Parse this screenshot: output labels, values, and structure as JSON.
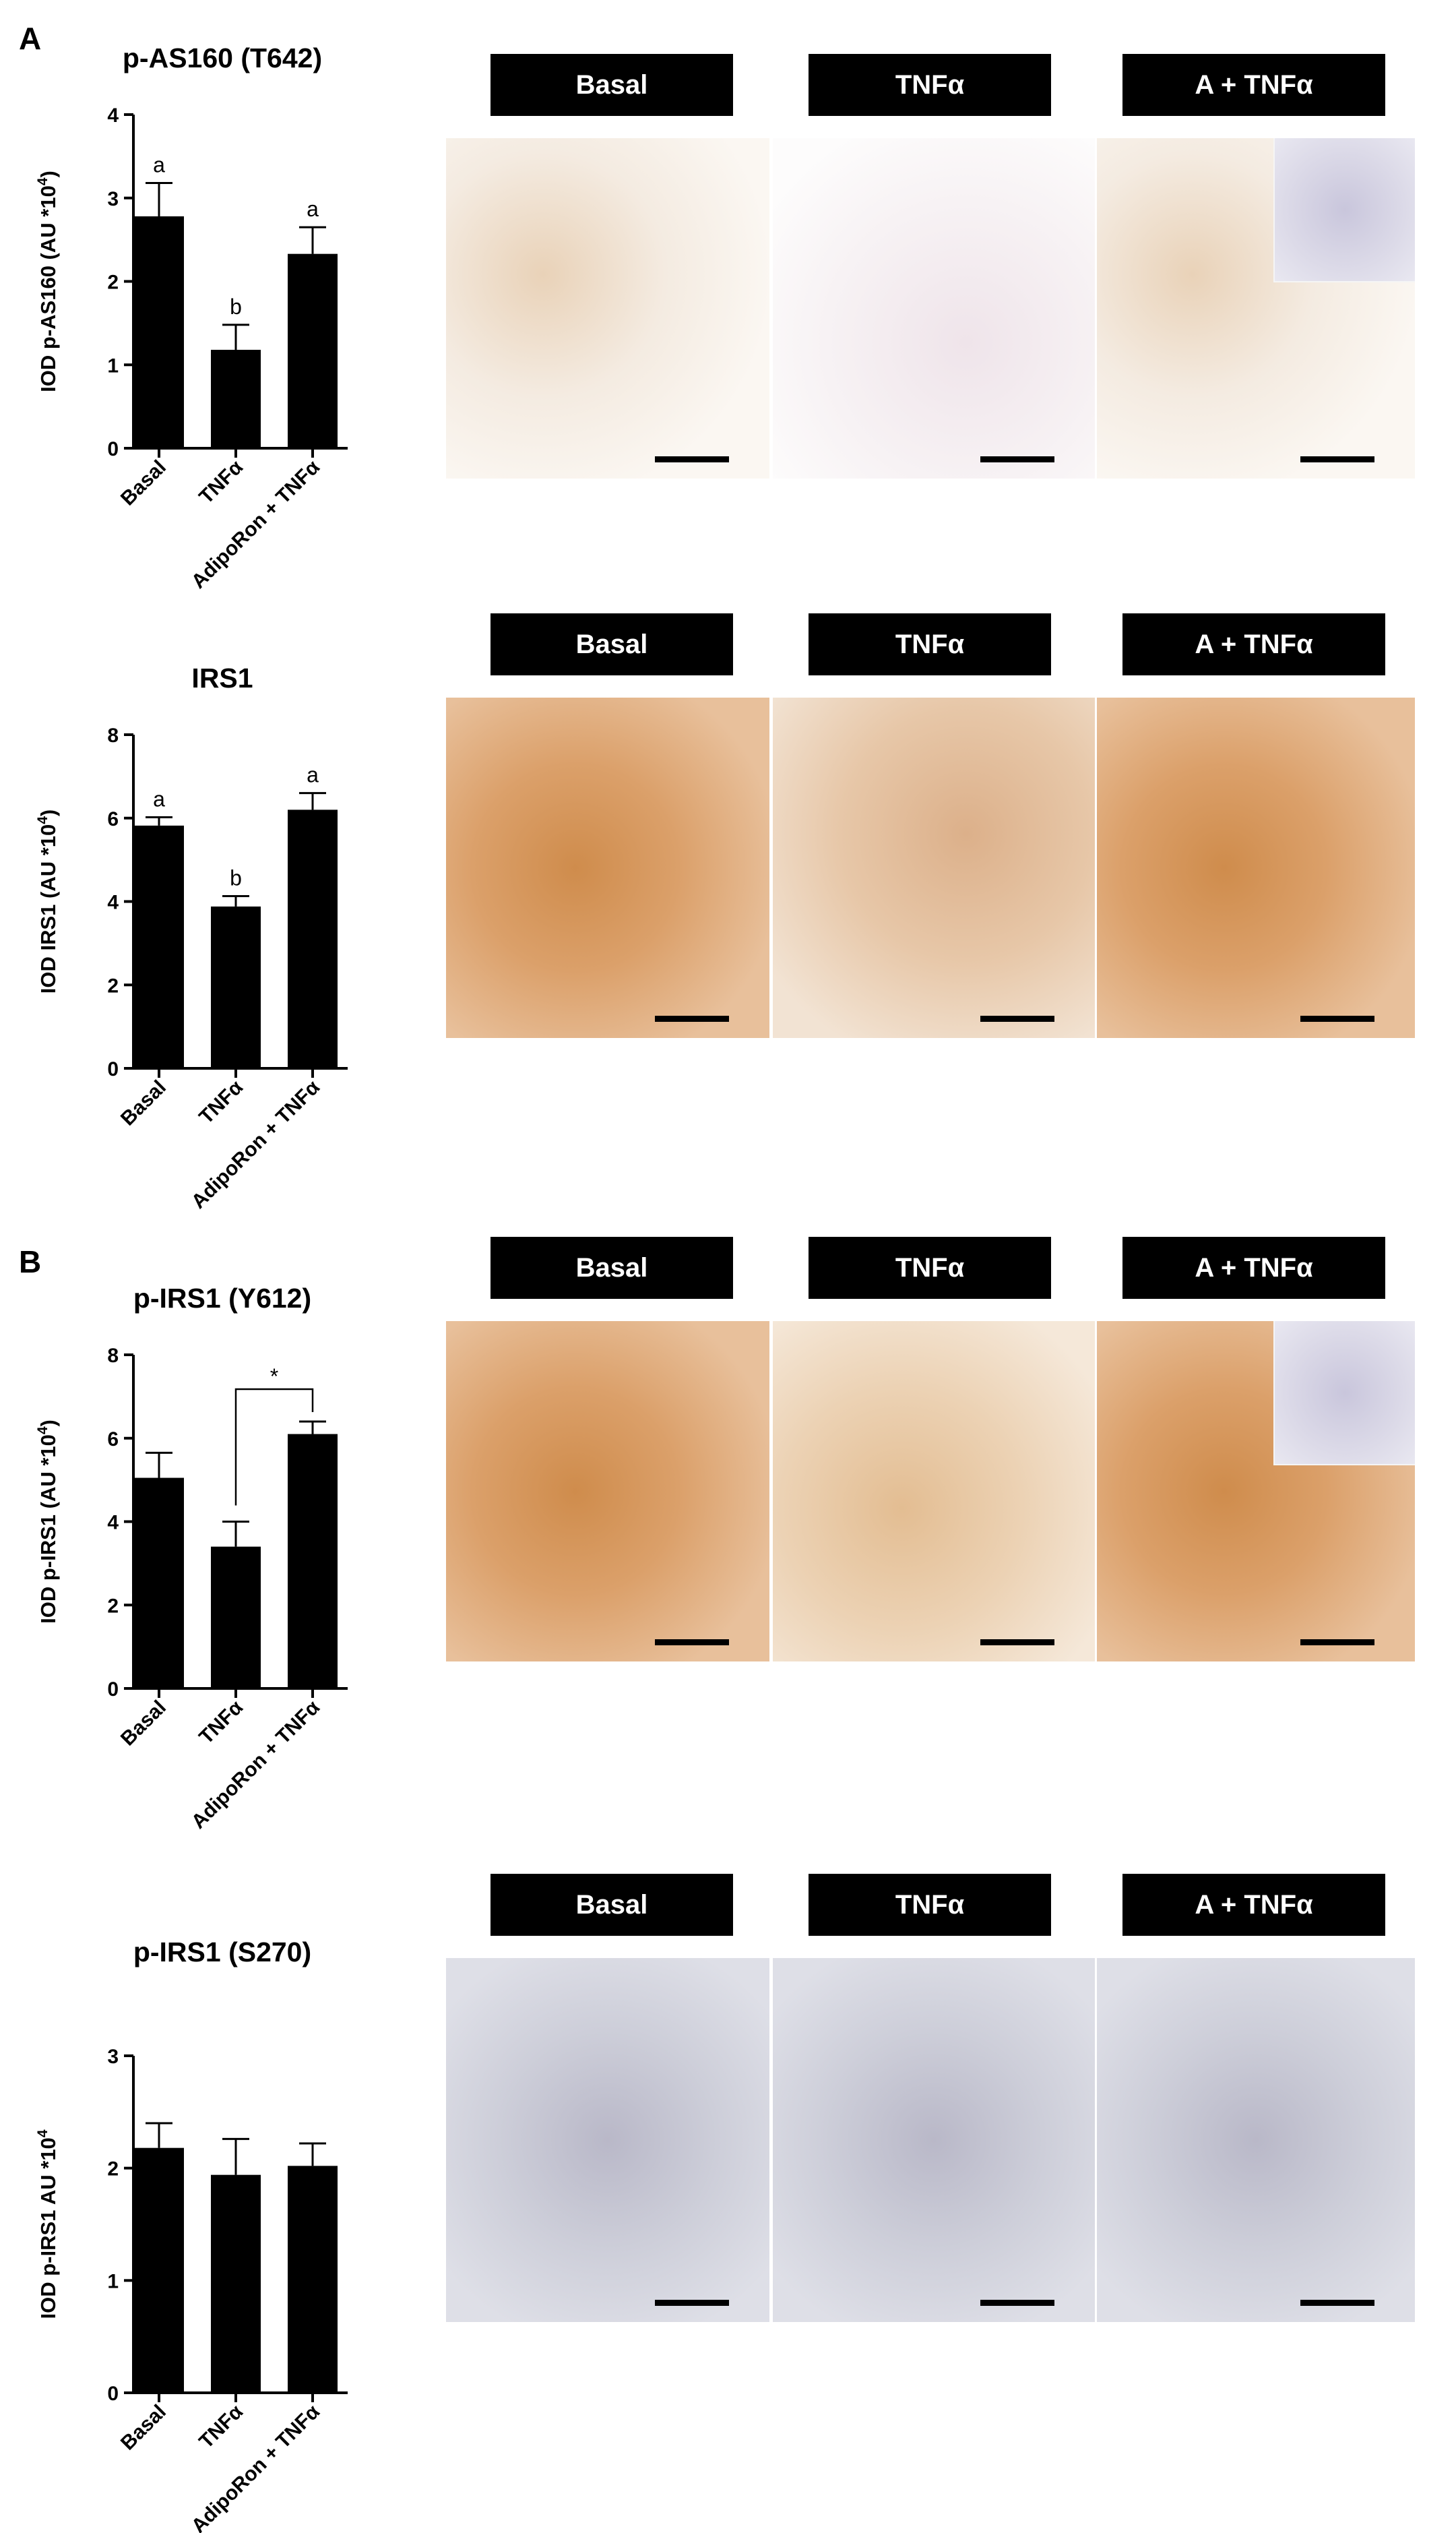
{
  "panels": [
    {
      "letter": "A",
      "x": 28,
      "y": 30
    },
    {
      "letter": "B",
      "x": 28,
      "y": 1845
    }
  ],
  "charts": [
    {
      "title": "p-AS160 (T642)",
      "ylabel_main": "IOD p-AS160 (AU *10",
      "ylabel_exp": "4",
      "ylabel_tail": ")"
    },
    {
      "title": "IRS1",
      "ylabel_main": "IOD IRS1 (AU *10",
      "ylabel_exp": "4",
      "ylabel_tail": ")"
    },
    {
      "title": "p-IRS1 (Y612)",
      "ylabel_main": "IOD p-IRS1 (AU *10",
      "ylabel_exp": "4",
      "ylabel_tail": ")"
    },
    {
      "title": "p-IRS1 (S270)",
      "ylabel_main": "IOD p-IRS1 AU *10",
      "ylabel_exp": "4",
      "ylabel_tail": ""
    }
  ],
  "chart_data": [
    {
      "type": "bar",
      "title": "p-AS160 (T642)",
      "ylabel": "IOD p-AS160 (AU *10^4)",
      "categories": [
        "Basal",
        "TNFα",
        "AdipoRon + TNFα"
      ],
      "values": [
        2.78,
        1.18,
        2.33
      ],
      "errors": [
        0.4,
        0.3,
        0.32
      ],
      "labels": [
        "a",
        "b",
        "a"
      ],
      "ylim": [
        0,
        4
      ],
      "yticks": [
        0,
        1,
        2,
        3,
        4
      ]
    },
    {
      "type": "bar",
      "title": "IRS1",
      "ylabel": "IOD IRS1 (AU *10^4)",
      "categories": [
        "Basal",
        "TNFα",
        "AdipoRon + TNFα"
      ],
      "values": [
        5.82,
        3.88,
        6.2
      ],
      "errors": [
        0.2,
        0.25,
        0.4
      ],
      "labels": [
        "a",
        "b",
        "a"
      ],
      "ylim": [
        0,
        8
      ],
      "yticks": [
        0,
        2,
        4,
        6,
        8
      ]
    },
    {
      "type": "bar",
      "title": "p-IRS1 (Y612)",
      "ylabel": "IOD p-IRS1 (AU *10^4)",
      "categories": [
        "Basal",
        "TNFα",
        "AdipoRon + TNFα"
      ],
      "values": [
        5.05,
        3.4,
        6.1
      ],
      "errors": [
        0.6,
        0.6,
        0.3
      ],
      "labels": [
        "",
        "",
        ""
      ],
      "significance": {
        "from": 1,
        "to": 2,
        "label": "*"
      },
      "ylim": [
        0,
        8
      ],
      "yticks": [
        0,
        2,
        4,
        6,
        8
      ]
    },
    {
      "type": "bar",
      "title": "p-IRS1 (S270)",
      "ylabel": "IOD p-IRS1 AU *10^4",
      "categories": [
        "Basal",
        "TNFα",
        "AdipoRon + TNFα"
      ],
      "values": [
        2.18,
        1.94,
        2.02
      ],
      "errors": [
        0.22,
        0.32,
        0.2
      ],
      "labels": [
        "",
        "",
        ""
      ],
      "ylim": [
        0,
        3
      ],
      "yticks": [
        0,
        1,
        2,
        3
      ]
    }
  ],
  "micrograph_rows": [
    {
      "labels": [
        "Basal",
        "TNFα",
        "A + TNFα"
      ],
      "styles": [
        "pale",
        "white",
        "pale"
      ],
      "inset": [
        false,
        false,
        true
      ]
    },
    {
      "labels": [
        "Basal",
        "TNFα",
        "A + TNFα"
      ],
      "styles": [
        "brown",
        "mid",
        "brown"
      ],
      "inset": [
        false,
        false,
        false
      ]
    },
    {
      "labels": [
        "Basal",
        "TNFα",
        "A + TNFα"
      ],
      "styles": [
        "brown",
        "tan",
        "brown"
      ],
      "inset": [
        false,
        false,
        true
      ]
    },
    {
      "labels": [
        "Basal",
        "TNFα",
        "A + TNFα"
      ],
      "styles": [
        "blue",
        "blue",
        "blue"
      ],
      "inset": [
        false,
        false,
        false
      ]
    }
  ]
}
